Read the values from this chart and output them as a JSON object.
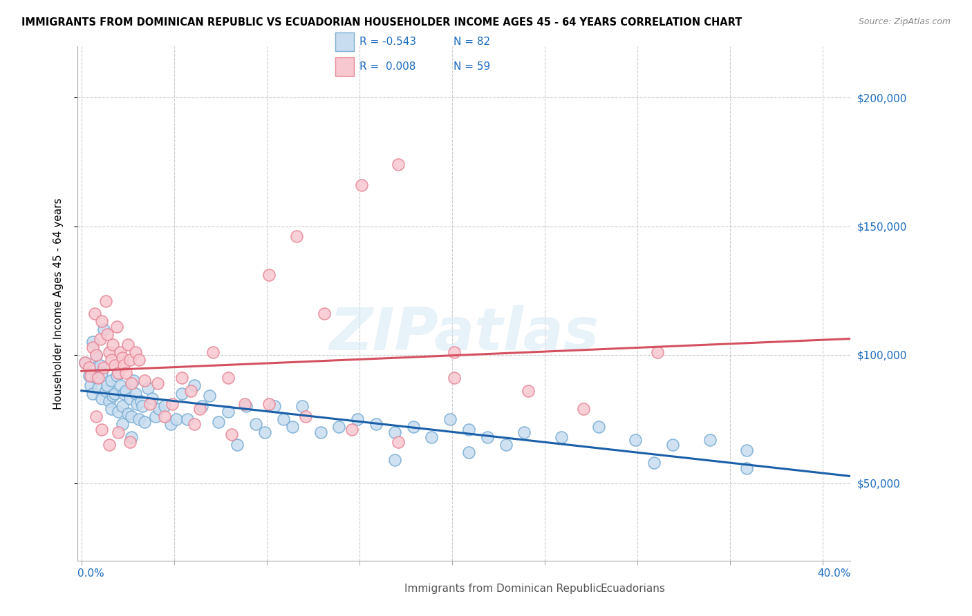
{
  "title": "IMMIGRANTS FROM DOMINICAN REPUBLIC VS ECUADORIAN HOUSEHOLDER INCOME AGES 45 - 64 YEARS CORRELATION CHART",
  "source": "Source: ZipAtlas.com",
  "ylabel": "Householder Income Ages 45 - 64 years",
  "xlim": [
    -0.002,
    0.415
  ],
  "ylim": [
    20000,
    220000
  ],
  "ytick_vals": [
    50000,
    100000,
    150000,
    200000
  ],
  "ytick_labels": [
    "$50,000",
    "$100,000",
    "$150,000",
    "$200,000"
  ],
  "xtick_positions": [
    0.0,
    0.05,
    0.1,
    0.15,
    0.2,
    0.25,
    0.3,
    0.35,
    0.4
  ],
  "legend_r_blue": "-0.543",
  "legend_n_blue": "82",
  "legend_r_pink": "0.008",
  "legend_n_pink": "59",
  "blue_edge": "#7bafd4",
  "pink_edge": "#e88899",
  "blue_fill": "#c8ddf0",
  "pink_fill": "#f8c8d0",
  "line_blue_color": "#1a5fa8",
  "line_pink_color": "#d45060",
  "watermark": "ZIPatlas",
  "label_blue": "Immigrants from Dominican Republic",
  "label_pink": "Ecuadorians",
  "blue_x": [
    0.002,
    0.004,
    0.005,
    0.006,
    0.006,
    0.007,
    0.008,
    0.008,
    0.009,
    0.01,
    0.011,
    0.011,
    0.012,
    0.013,
    0.014,
    0.015,
    0.016,
    0.016,
    0.017,
    0.018,
    0.019,
    0.02,
    0.021,
    0.022,
    0.023,
    0.024,
    0.025,
    0.026,
    0.027,
    0.028,
    0.029,
    0.03,
    0.031,
    0.032,
    0.033,
    0.034,
    0.036,
    0.038,
    0.04,
    0.042,
    0.045,
    0.048,
    0.051,
    0.054,
    0.057,
    0.061,
    0.065,
    0.069,
    0.074,
    0.079,
    0.084,
    0.089,
    0.094,
    0.099,
    0.104,
    0.109,
    0.114,
    0.119,
    0.129,
    0.139,
    0.149,
    0.159,
    0.169,
    0.179,
    0.189,
    0.199,
    0.209,
    0.219,
    0.229,
    0.239,
    0.259,
    0.279,
    0.299,
    0.319,
    0.339,
    0.359,
    0.022,
    0.027,
    0.169,
    0.209,
    0.309,
    0.359
  ],
  "blue_y": [
    97000,
    92000,
    88000,
    105000,
    85000,
    95000,
    100000,
    91000,
    87000,
    96000,
    83000,
    93000,
    110000,
    86000,
    88000,
    82000,
    90000,
    79000,
    84000,
    85000,
    92000,
    78000,
    88000,
    80000,
    85000,
    86000,
    77000,
    83000,
    76000,
    90000,
    85000,
    81000,
    75000,
    82000,
    80000,
    74000,
    87000,
    83000,
    76000,
    79000,
    80000,
    73000,
    75000,
    85000,
    75000,
    88000,
    80000,
    84000,
    74000,
    78000,
    65000,
    80000,
    73000,
    70000,
    80000,
    75000,
    72000,
    80000,
    70000,
    72000,
    75000,
    73000,
    70000,
    72000,
    68000,
    75000,
    71000,
    68000,
    65000,
    70000,
    68000,
    72000,
    67000,
    65000,
    67000,
    63000,
    73000,
    68000,
    59000,
    62000,
    58000,
    56000
  ],
  "pink_x": [
    0.002,
    0.004,
    0.005,
    0.006,
    0.007,
    0.008,
    0.009,
    0.01,
    0.011,
    0.012,
    0.013,
    0.014,
    0.015,
    0.016,
    0.017,
    0.018,
    0.019,
    0.02,
    0.021,
    0.022,
    0.023,
    0.024,
    0.025,
    0.026,
    0.027,
    0.029,
    0.031,
    0.034,
    0.037,
    0.041,
    0.045,
    0.049,
    0.054,
    0.059,
    0.064,
    0.071,
    0.079,
    0.088,
    0.101,
    0.116,
    0.131,
    0.151,
    0.171,
    0.201,
    0.061,
    0.081,
    0.101,
    0.121,
    0.146,
    0.171,
    0.201,
    0.241,
    0.271,
    0.311,
    0.008,
    0.011,
    0.015,
    0.02,
    0.026
  ],
  "pink_y": [
    97000,
    95000,
    92000,
    103000,
    116000,
    100000,
    91000,
    106000,
    113000,
    95000,
    121000,
    108000,
    101000,
    98000,
    104000,
    96000,
    111000,
    93000,
    101000,
    99000,
    96000,
    93000,
    104000,
    98000,
    89000,
    101000,
    98000,
    90000,
    81000,
    89000,
    76000,
    81000,
    91000,
    86000,
    79000,
    101000,
    91000,
    81000,
    131000,
    146000,
    116000,
    166000,
    174000,
    101000,
    73000,
    69000,
    81000,
    76000,
    71000,
    66000,
    91000,
    86000,
    79000,
    101000,
    76000,
    71000,
    65000,
    70000,
    66000
  ]
}
